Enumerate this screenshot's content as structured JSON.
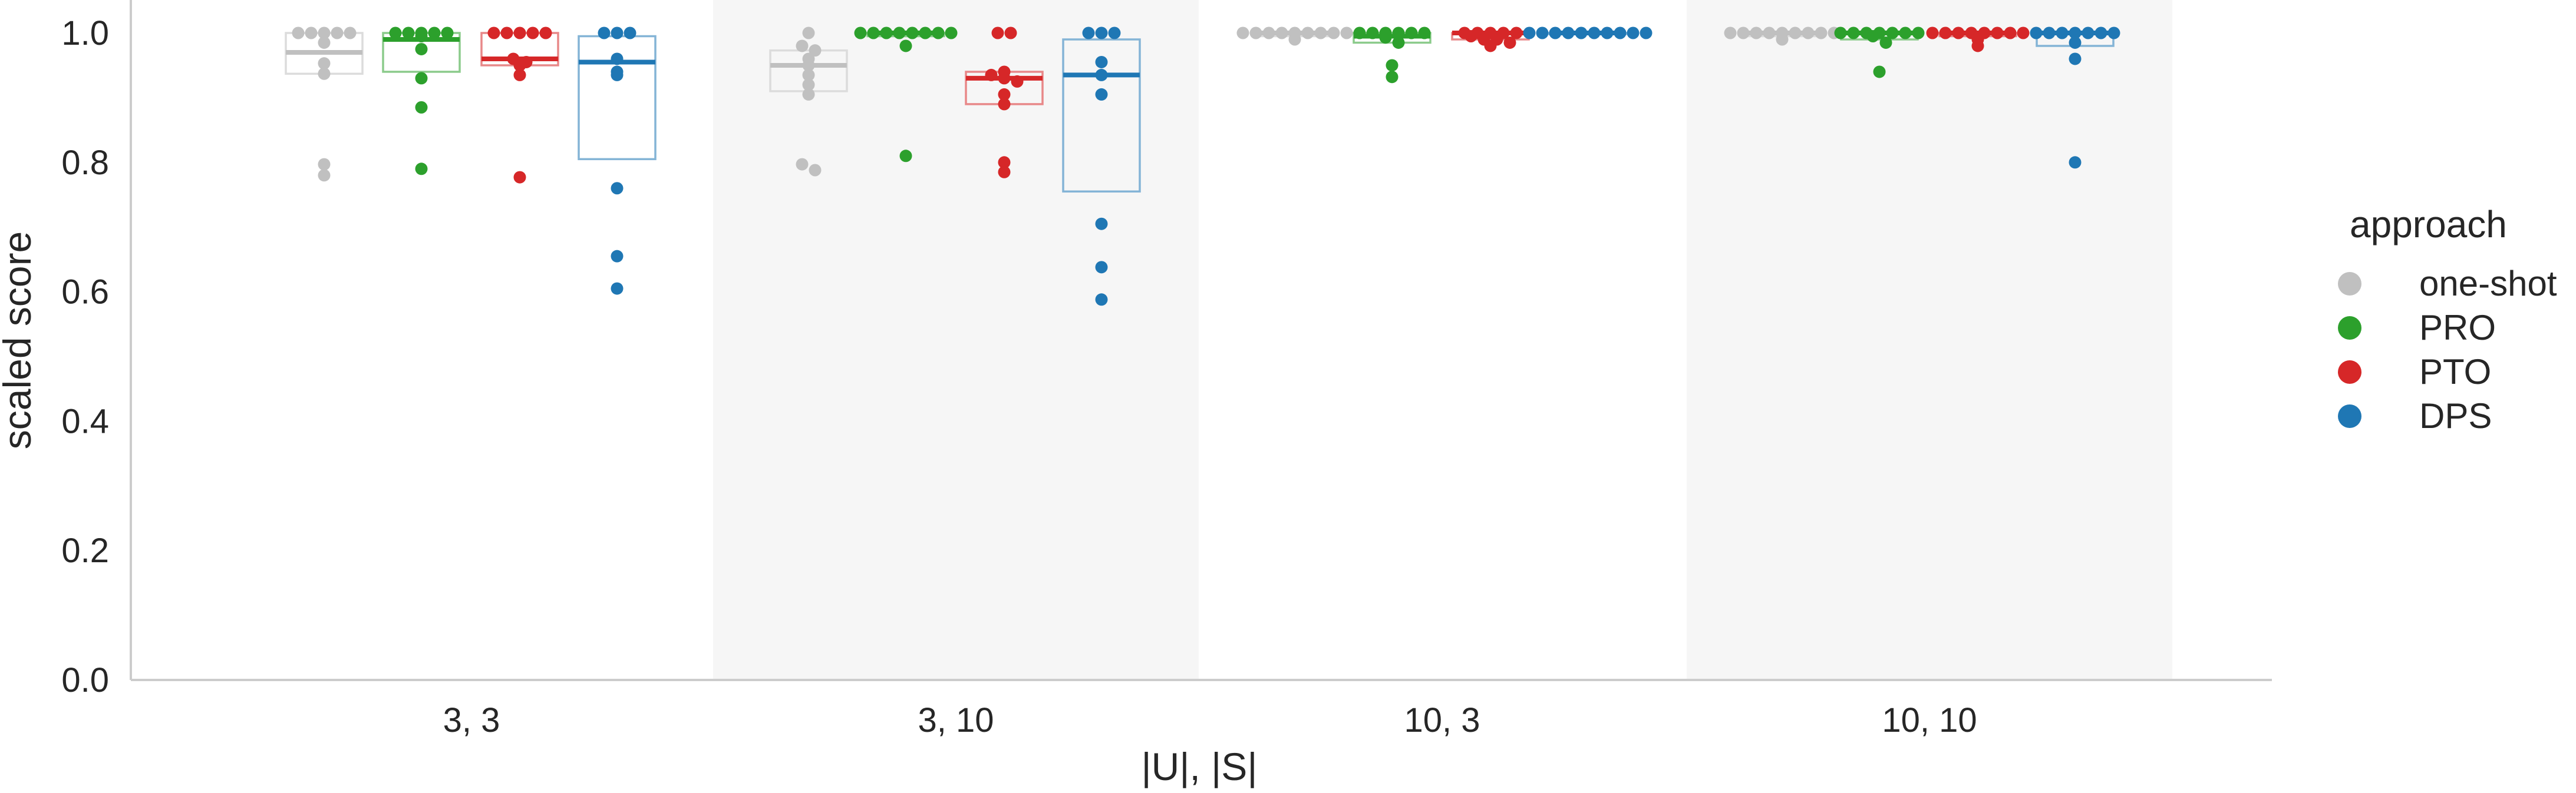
{
  "chart_data": {
    "type": "box+swarm",
    "xlabel": "|U|, |S|",
    "ylabel": "scaled score",
    "ylim": [
      0,
      1.0
    ],
    "yticks": [
      0.0,
      0.2,
      0.4,
      0.6,
      0.8,
      1.0
    ],
    "ytick_labels": [
      "0.0",
      "0.2",
      "0.4",
      "0.6",
      "0.8",
      "1.0"
    ],
    "grid": false,
    "shaded_alternate_groups": true,
    "categories": [
      "3, 3",
      "3, 10",
      "10, 3",
      "10, 10"
    ],
    "legend": {
      "title": "approach",
      "placement": "right",
      "entries": [
        {
          "label": "one-shot",
          "color": "#c0c0c0"
        },
        {
          "label": "PRO",
          "color": "#2ca02c"
        },
        {
          "label": "PTO",
          "color": "#d62728"
        },
        {
          "label": "DPS",
          "color": "#1f77b4"
        }
      ]
    },
    "series": [
      {
        "name": "one-shot",
        "color": "#c0c0c0",
        "groups": [
          {
            "box": {
              "q1": 0.937,
              "median": 0.97,
              "q3": 1.0
            },
            "points": [
              1.0,
              1.0,
              1.0,
              1.0,
              1.0,
              0.985,
              0.953,
              0.937,
              0.797,
              0.78
            ]
          },
          {
            "box": {
              "q1": 0.91,
              "median": 0.95,
              "q3": 0.973
            },
            "points": [
              1.0,
              0.98,
              0.973,
              0.96,
              0.95,
              0.935,
              0.92,
              0.905,
              0.797,
              0.788
            ]
          },
          {
            "box": {
              "q1": 0.995,
              "median": 1.0,
              "q3": 1.0
            },
            "points": [
              1.0,
              1.0,
              1.0,
              1.0,
              1.0,
              1.0,
              1.0,
              1.0,
              1.0,
              0.99
            ]
          },
          {
            "box": {
              "q1": 0.995,
              "median": 1.0,
              "q3": 1.0
            },
            "points": [
              1.0,
              1.0,
              1.0,
              1.0,
              1.0,
              1.0,
              1.0,
              1.0,
              1.0,
              0.99
            ]
          }
        ]
      },
      {
        "name": "PRO",
        "color": "#2ca02c",
        "groups": [
          {
            "box": {
              "q1": 0.94,
              "median": 0.99,
              "q3": 1.0
            },
            "points": [
              1.0,
              1.0,
              1.0,
              1.0,
              1.0,
              0.995,
              0.975,
              0.93,
              0.885,
              0.79
            ]
          },
          {
            "box": {
              "q1": 0.995,
              "median": 1.0,
              "q3": 1.0
            },
            "points": [
              1.0,
              1.0,
              1.0,
              1.0,
              1.0,
              1.0,
              1.0,
              1.0,
              0.98,
              0.81
            ]
          },
          {
            "box": {
              "q1": 0.985,
              "median": 0.995,
              "q3": 1.0
            },
            "points": [
              1.0,
              1.0,
              1.0,
              1.0,
              1.0,
              1.0,
              0.993,
              0.985,
              0.95,
              0.932
            ]
          },
          {
            "box": {
              "q1": 0.99,
              "median": 1.0,
              "q3": 1.0
            },
            "points": [
              1.0,
              1.0,
              1.0,
              1.0,
              1.0,
              1.0,
              1.0,
              0.995,
              0.985,
              0.94
            ]
          }
        ]
      },
      {
        "name": "PTO",
        "color": "#d62728",
        "groups": [
          {
            "box": {
              "q1": 0.95,
              "median": 0.96,
              "q3": 1.0
            },
            "points": [
              1.0,
              1.0,
              1.0,
              1.0,
              1.0,
              0.96,
              0.955,
              0.95,
              0.935,
              0.777
            ]
          },
          {
            "box": {
              "q1": 0.89,
              "median": 0.93,
              "q3": 0.94
            },
            "points": [
              1.0,
              1.0,
              0.94,
              0.935,
              0.93,
              0.925,
              0.905,
              0.89,
              0.8,
              0.785
            ]
          },
          {
            "box": {
              "q1": 0.99,
              "median": 1.0,
              "q3": 1.0
            },
            "points": [
              1.0,
              1.0,
              1.0,
              1.0,
              1.0,
              0.995,
              0.99,
              0.99,
              0.985,
              0.98
            ]
          },
          {
            "box": {
              "q1": 0.995,
              "median": 1.0,
              "q3": 1.0
            },
            "points": [
              1.0,
              1.0,
              1.0,
              1.0,
              1.0,
              1.0,
              1.0,
              1.0,
              0.99,
              0.98
            ]
          }
        ]
      },
      {
        "name": "DPS",
        "color": "#1f77b4",
        "groups": [
          {
            "box": {
              "q1": 0.805,
              "median": 0.955,
              "q3": 0.995
            },
            "points": [
              1.0,
              1.0,
              1.0,
              0.96,
              0.94,
              0.935,
              0.76,
              0.655,
              0.605
            ]
          },
          {
            "box": {
              "q1": 0.755,
              "median": 0.935,
              "q3": 0.99
            },
            "points": [
              1.0,
              1.0,
              1.0,
              0.955,
              0.935,
              0.905,
              0.705,
              0.638,
              0.588
            ]
          },
          {
            "box": {
              "q1": 1.0,
              "median": 1.0,
              "q3": 1.0
            },
            "points": [
              1.0,
              1.0,
              1.0,
              1.0,
              1.0,
              1.0,
              1.0,
              1.0,
              1.0,
              1.0
            ]
          },
          {
            "box": {
              "q1": 0.98,
              "median": 1.0,
              "q3": 1.0
            },
            "points": [
              1.0,
              1.0,
              1.0,
              1.0,
              1.0,
              1.0,
              1.0,
              0.985,
              0.96,
              0.8
            ]
          }
        ]
      }
    ]
  }
}
